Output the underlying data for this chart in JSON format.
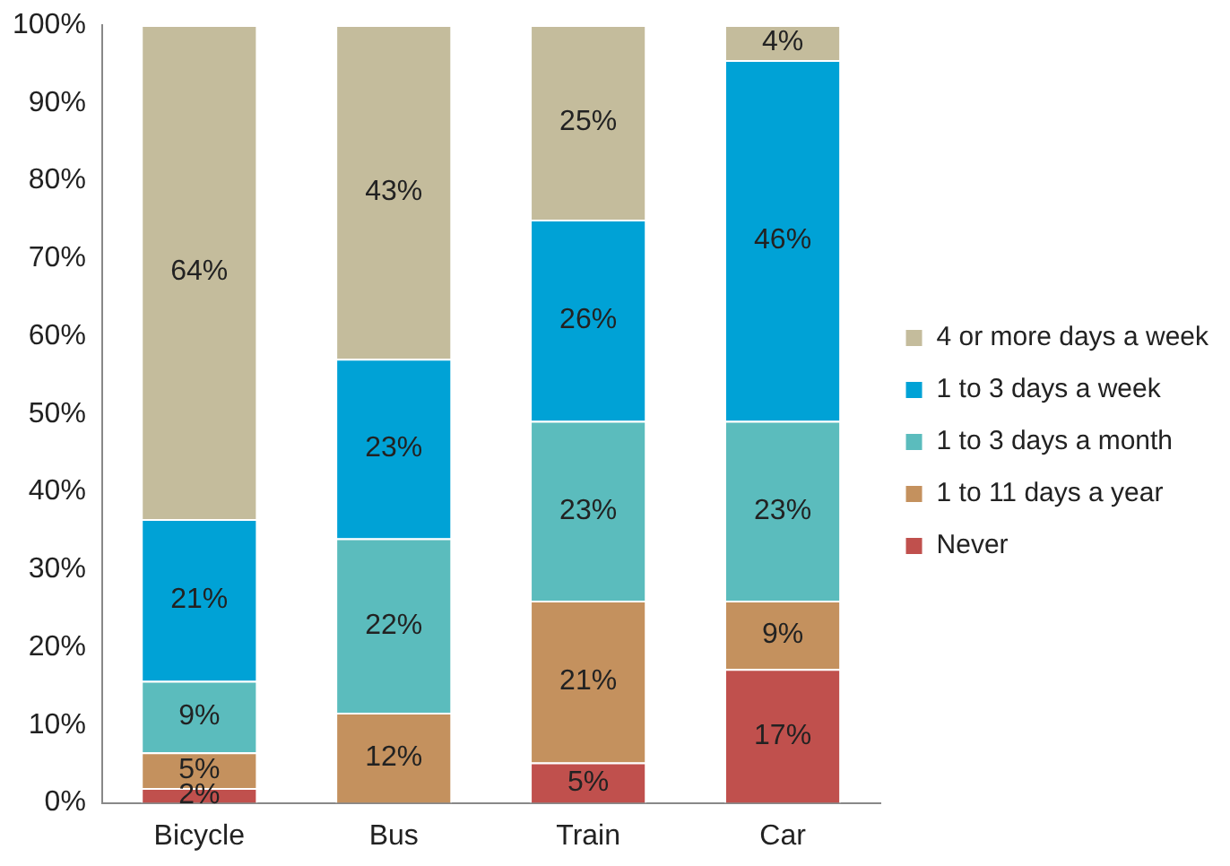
{
  "chart_data": {
    "type": "bar",
    "stacked": true,
    "categories": [
      "Bicycle",
      "Bus",
      "Train",
      "Car"
    ],
    "series": [
      {
        "name": "Never",
        "color": "#c0504d",
        "values": [
          1.9,
          0,
          5.2,
          17.2
        ],
        "value_labels": [
          "2%",
          null,
          "5%",
          "17%"
        ]
      },
      {
        "name": "1 to 11 days a year",
        "color": "#c4915e",
        "values": [
          4.6,
          11.6,
          20.8,
          8.8
        ],
        "value_labels": [
          "5%",
          "12%",
          "21%",
          "9%"
        ]
      },
      {
        "name": "1 to 3 days a month",
        "color": "#5bbcbd",
        "values": [
          9.2,
          22.4,
          23.1,
          23.1
        ],
        "value_labels": [
          "9%",
          "22%",
          "23%",
          "23%"
        ]
      },
      {
        "name": "1 to 3 days a week",
        "color": "#00a2d6",
        "values": [
          20.8,
          23.1,
          25.9,
          46.4
        ],
        "value_labels": [
          "21%",
          "23%",
          "26%",
          "46%"
        ]
      },
      {
        "name": "4 or more days a week",
        "color": "#c4bc9c",
        "values": [
          63.5,
          42.9,
          25,
          4.5
        ],
        "value_labels": [
          "64%",
          "43%",
          "25%",
          "4%"
        ]
      }
    ],
    "ylim": [
      0,
      100
    ],
    "yticks": [
      {
        "value": 0,
        "label": "0%"
      },
      {
        "value": 10,
        "label": "10%"
      },
      {
        "value": 20,
        "label": "20%"
      },
      {
        "value": 30,
        "label": "30%"
      },
      {
        "value": 40,
        "label": "40%"
      },
      {
        "value": 50,
        "label": "50%"
      },
      {
        "value": 60,
        "label": "60%"
      },
      {
        "value": 70,
        "label": "70%"
      },
      {
        "value": 80,
        "label": "80%"
      },
      {
        "value": 90,
        "label": "90%"
      },
      {
        "value": 100,
        "label": "100%"
      }
    ],
    "grid": false,
    "legend": "right"
  }
}
